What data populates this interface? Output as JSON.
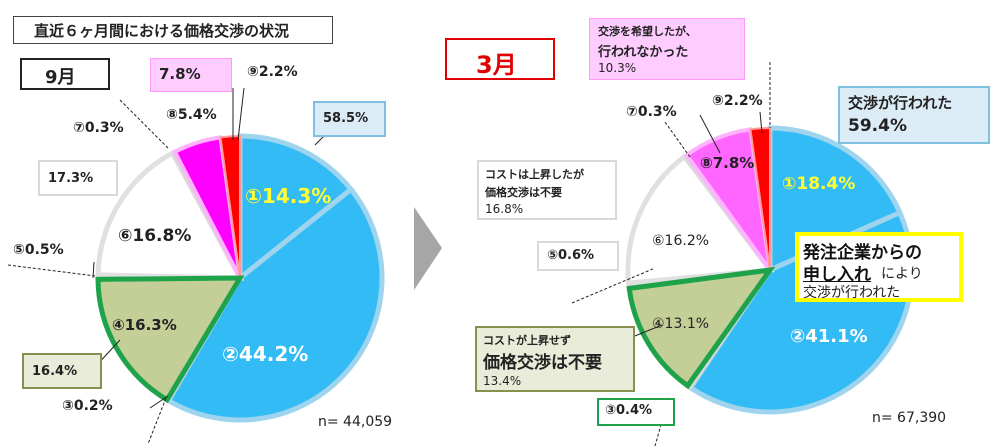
{
  "title": "直近６ヶ月間における価格交渉の状況",
  "panels": [
    {
      "month": "9月",
      "n_label": "n= 44,059",
      "slices": [
        {
          "id": "①",
          "value": 14.3,
          "label": "①14.3%",
          "color": "#33bbf5"
        },
        {
          "id": "②",
          "value": 44.2,
          "label": "②44.2%",
          "color": "#33bbf5"
        },
        {
          "id": "③",
          "value": 0.2,
          "label": "③0.2%",
          "color": "#d9d9d9"
        },
        {
          "id": "④",
          "value": 16.3,
          "label": "④16.3%",
          "color": "#c4cf98"
        },
        {
          "id": "⑤",
          "value": 0.5,
          "label": "⑤0.5%",
          "color": "#d9d9d9"
        },
        {
          "id": "⑥",
          "value": 16.8,
          "label": "⑥16.8%",
          "color": "#ffffff"
        },
        {
          "id": "⑦",
          "value": 0.3,
          "label": "⑦0.3%",
          "color": "#d9d9d9"
        },
        {
          "id": "⑧",
          "value": 5.4,
          "label": "⑧5.4%",
          "color": "#ff00ff"
        },
        {
          "id": "⑨",
          "value": 2.2,
          "label": "⑨2.2%",
          "color": "#ff0000"
        }
      ],
      "group_labels": {
        "negotiated": "58.5%",
        "not_needed_cost_up": "17.3%",
        "not_needed_no_cost": "16.4%",
        "wanted_not_done": "7.8%"
      }
    },
    {
      "month": "3月",
      "n_label": "n= 67,390",
      "slices": [
        {
          "id": "①",
          "value": 18.4,
          "label": "①18.4%",
          "color": "#33bbf5"
        },
        {
          "id": "②",
          "value": 41.1,
          "label": "②41.1%",
          "color": "#33bbf5"
        },
        {
          "id": "③",
          "value": 0.4,
          "label": "③0.4%",
          "color": "#d9d9d9"
        },
        {
          "id": "④",
          "value": 13.1,
          "label": "④13.1%",
          "color": "#c4cf98"
        },
        {
          "id": "⑤",
          "value": 0.6,
          "label": "⑤0.6%",
          "color": "#d9d9d9"
        },
        {
          "id": "⑥",
          "value": 16.2,
          "label": "⑥16.2%",
          "color": "#ffffff"
        },
        {
          "id": "⑦",
          "value": 0.3,
          "label": "⑦0.3%",
          "color": "#d9d9d9"
        },
        {
          "id": "⑧",
          "value": 7.8,
          "label": "⑧7.8%",
          "color": "#ff66ff"
        },
        {
          "id": "⑨",
          "value": 2.2,
          "label": "⑨2.2%",
          "color": "#ff0000"
        }
      ],
      "callouts": {
        "negotiated": [
          "交渉が行われた",
          "59.4%"
        ],
        "wanted_not_done": [
          "交渉を希望したが、",
          "行われなかった",
          "10.3%"
        ],
        "cost_up_not_needed": [
          "コストは上昇したが",
          "価格交渉は不要",
          "16.8%"
        ],
        "no_cost_not_needed": [
          "コストが上昇せず",
          "価格交渉は不要",
          "13.4%"
        ],
        "highlight": [
          "発注企業からの",
          "申し入れ",
          "により",
          "交渉が行われた"
        ]
      }
    }
  ],
  "chart_data": [
    {
      "type": "pie",
      "title": "9月",
      "note": "n= 44,059",
      "categories": [
        "①",
        "②",
        "③",
        "④",
        "⑤",
        "⑥",
        "⑦",
        "⑧",
        "⑨"
      ],
      "values": [
        14.3,
        44.2,
        0.2,
        16.3,
        0.5,
        16.8,
        0.3,
        5.4,
        2.2
      ]
    },
    {
      "type": "pie",
      "title": "3月",
      "note": "n= 67,390",
      "categories": [
        "①",
        "②",
        "③",
        "④",
        "⑤",
        "⑥",
        "⑦",
        "⑧",
        "⑨"
      ],
      "values": [
        18.4,
        41.1,
        0.4,
        13.1,
        0.6,
        16.2,
        0.3,
        7.8,
        2.2
      ]
    }
  ]
}
